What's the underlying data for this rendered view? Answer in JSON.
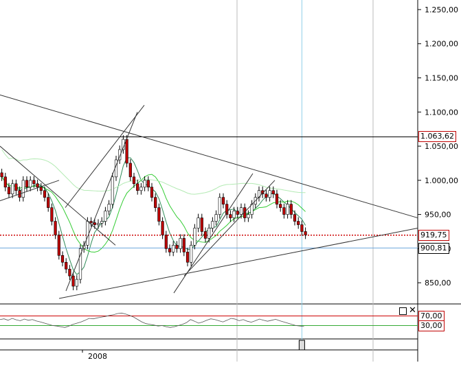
{
  "chart_data": [
    {
      "type": "candlestick",
      "yticks": [
        850,
        900,
        950,
        1000,
        1050,
        1100,
        1150,
        1200,
        1250
      ],
      "ytick_labels": [
        "850,00",
        "900,00",
        "950,00",
        "1.000,00",
        "1.050,00",
        "1.100,00",
        "1.150,00",
        "1.200,00",
        "1.250,00"
      ],
      "ylim": [
        822,
        1260
      ],
      "x_label": "2008",
      "grid_horizontal": false,
      "horizontal_levels": [
        {
          "value": 1063.62,
          "label": "1.063,62",
          "style": "solid",
          "color": "#000000"
        },
        {
          "value": 919.75,
          "label": "919,75",
          "style": "dotted",
          "color": "#cc0000"
        },
        {
          "value": 900.81,
          "label": "900,81",
          "style": "solid",
          "color": "#6fa8dc"
        }
      ],
      "closes": [
        1005,
        990,
        980,
        995,
        985,
        975,
        1000,
        990,
        1000,
        995,
        990,
        985,
        975,
        960,
        940,
        920,
        890,
        880,
        870,
        860,
        845,
        855,
        900,
        905,
        940,
        938,
        935,
        937,
        940,
        955,
        965,
        1005,
        1030,
        1045,
        1060,
        1025,
        1005,
        995,
        985,
        990,
        1000,
        990,
        975,
        960,
        940,
        920,
        900,
        895,
        905,
        900,
        915,
        895,
        880,
        905,
        930,
        945,
        925,
        915,
        930,
        940,
        950,
        975,
        965,
        950,
        945,
        955,
        950,
        960,
        945,
        950,
        965,
        975,
        985,
        980,
        975,
        985,
        980,
        965,
        960,
        950,
        965,
        950,
        940,
        935,
        925,
        920
      ],
      "series": [
        {
          "name": "",
          "color": "#2e8b57"
        },
        {
          "name": "",
          "color": "#33cc33"
        },
        {
          "name": "",
          "color": "#b3eab3"
        }
      ],
      "trendlines": [
        {
          "from": [
            0,
            1125
          ],
          "to": [
            608,
            945
          ]
        },
        {
          "from": [
            86,
            827
          ],
          "to": [
            608,
            930
          ]
        },
        {
          "from": [
            95,
            960
          ],
          "to": [
            210,
            1110
          ]
        },
        {
          "from": [
            96,
            838
          ],
          "to": [
            200,
            1100
          ]
        },
        {
          "from": [
            253,
            835
          ],
          "to": [
            368,
            1010
          ]
        },
        {
          "from": [
            268,
            860
          ],
          "to": [
            400,
            1000
          ]
        },
        {
          "from": [
            0,
            1050
          ],
          "to": [
            168,
            905
          ]
        },
        {
          "from": [
            0,
            970
          ],
          "to": [
            86,
            1000
          ]
        }
      ],
      "crosshair_x_index": 84
    },
    {
      "type": "line",
      "name": "",
      "ylim": [
        0,
        100
      ],
      "levels": [
        {
          "value": 70,
          "label": "70,00",
          "color": "#cc0000"
        },
        {
          "value": 30,
          "label": "30,00",
          "color": "#33aa33"
        }
      ],
      "values": [
        55,
        58,
        52,
        60,
        54,
        50,
        57,
        52,
        55,
        49,
        45,
        40,
        35,
        30,
        28,
        25,
        22,
        28,
        35,
        40,
        45,
        52,
        60,
        58,
        62,
        65,
        68,
        72,
        75,
        80,
        82,
        78,
        72,
        65,
        55,
        45,
        38,
        35,
        32,
        28,
        30,
        25,
        22,
        25,
        30,
        35,
        42,
        55,
        48,
        40,
        45,
        52,
        58,
        55,
        50,
        45,
        52,
        60,
        57,
        50,
        55,
        48,
        44,
        50,
        57,
        52,
        48,
        52,
        56,
        50,
        45,
        40,
        35,
        30,
        28,
        26
      ]
    }
  ]
}
